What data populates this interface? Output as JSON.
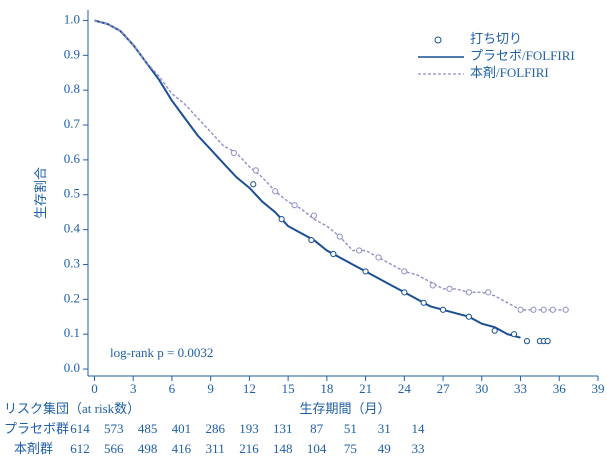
{
  "chart_data": {
    "type": "km",
    "y_label": "生存割合",
    "x_label": "生存期間（月）",
    "annotation": "log-rank p = 0.0032",
    "xlim": [
      -0.5,
      39
    ],
    "xticks": [
      0,
      3,
      6,
      9,
      12,
      15,
      18,
      21,
      24,
      27,
      30,
      33,
      36,
      39
    ],
    "ylim": [
      -0.02,
      1.03
    ],
    "yticks": [
      {
        "value": 0,
        "label": "0.0"
      },
      0.1,
      0.2,
      0.3,
      0.4,
      0.5,
      0.6,
      0.7,
      0.8,
      0.9,
      {
        "value": 1,
        "label": "1.0"
      }
    ],
    "legend_position": "upper right",
    "censor_label": "打ち切り",
    "series": [
      {
        "name": "プラセボ/FOLFIRI",
        "color": "#1a4f94",
        "dashed": false,
        "x": [
          0,
          1,
          2,
          3,
          4,
          5,
          6,
          7,
          8,
          9,
          10,
          11,
          12,
          13,
          14,
          15,
          16,
          17,
          18,
          19,
          20,
          21,
          22,
          23,
          24,
          25,
          26,
          27,
          28,
          29,
          30,
          31,
          32,
          33
        ],
        "values": [
          1.0,
          0.99,
          0.97,
          0.93,
          0.88,
          0.83,
          0.77,
          0.72,
          0.67,
          0.63,
          0.59,
          0.55,
          0.52,
          0.48,
          0.45,
          0.41,
          0.39,
          0.37,
          0.34,
          0.32,
          0.3,
          0.28,
          0.26,
          0.24,
          0.22,
          0.2,
          0.18,
          0.17,
          0.16,
          0.15,
          0.13,
          0.12,
          0.1,
          0.09
        ],
        "censored_x": [
          12.3,
          14.5,
          16.8,
          18.5,
          21,
          24,
          25.5,
          27,
          29,
          31,
          32.5,
          33.5,
          34.5,
          34.8,
          35.1
        ],
        "censored_values": [
          0.53,
          0.43,
          0.37,
          0.33,
          0.28,
          0.22,
          0.19,
          0.17,
          0.15,
          0.11,
          0.1,
          0.08,
          0.08,
          0.08,
          0.08
        ]
      },
      {
        "name": "本剤/FOLFIRI",
        "color": "#8f8fc8",
        "dashed": true,
        "x": [
          0,
          1,
          2,
          3,
          4,
          5,
          6,
          7,
          8,
          9,
          10,
          11,
          12,
          13,
          14,
          15,
          16,
          17,
          18,
          19,
          20,
          21,
          22,
          23,
          24,
          25,
          26,
          27,
          28,
          29,
          30,
          31,
          32,
          33,
          36.5
        ],
        "values": [
          1.0,
          0.99,
          0.97,
          0.93,
          0.88,
          0.84,
          0.79,
          0.76,
          0.72,
          0.68,
          0.64,
          0.62,
          0.58,
          0.55,
          0.51,
          0.48,
          0.46,
          0.43,
          0.41,
          0.38,
          0.34,
          0.34,
          0.32,
          0.3,
          0.28,
          0.27,
          0.25,
          0.23,
          0.23,
          0.22,
          0.22,
          0.21,
          0.19,
          0.17,
          0.17
        ],
        "censored_x": [
          10.8,
          12.5,
          14,
          15.5,
          17,
          19,
          20.5,
          22,
          24,
          26.2,
          27.5,
          29,
          30.5,
          33,
          34,
          34.8,
          35.5,
          36.5
        ],
        "censored_values": [
          0.62,
          0.57,
          0.51,
          0.47,
          0.44,
          0.38,
          0.34,
          0.32,
          0.28,
          0.24,
          0.23,
          0.22,
          0.22,
          0.17,
          0.17,
          0.17,
          0.17,
          0.17
        ]
      }
    ],
    "risk_table": {
      "title": "リスク集団（at risk数）",
      "rows": [
        {
          "label": "プラセボ群",
          "counts": [
            614,
            573,
            485,
            401,
            286,
            193,
            131,
            87,
            51,
            31,
            14
          ]
        },
        {
          "label": "本剤群",
          "counts": [
            612,
            566,
            498,
            416,
            311,
            216,
            148,
            104,
            75,
            49,
            33
          ]
        }
      ]
    }
  }
}
